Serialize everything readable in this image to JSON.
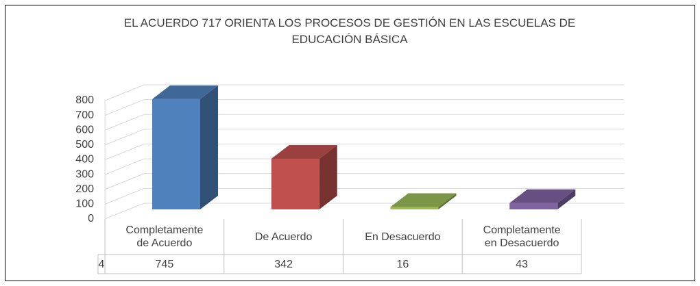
{
  "chart_data": {
    "type": "bar3d",
    "title": "EL ACUERDO 717 ORIENTA LOS PROCESOS DE GESTIÓN EN LAS ESCUELAS DE EDUCACIÓN BÁSICA",
    "categories": [
      "Completamente de Acuerdo",
      "De Acuerdo",
      "En Desacuerdo",
      "Completamente en Desacuerdo"
    ],
    "series": [
      {
        "name": "4",
        "colors": [
          "#4f81bd",
          "#c0504d",
          "#9bbb59",
          "#8064a2"
        ],
        "values": [
          745,
          342,
          16,
          43
        ]
      }
    ],
    "ylim": [
      0,
      800
    ],
    "yticks": [
      0,
      100,
      200,
      300,
      400,
      500,
      600,
      700,
      800
    ],
    "grid": true,
    "data_table": true
  }
}
